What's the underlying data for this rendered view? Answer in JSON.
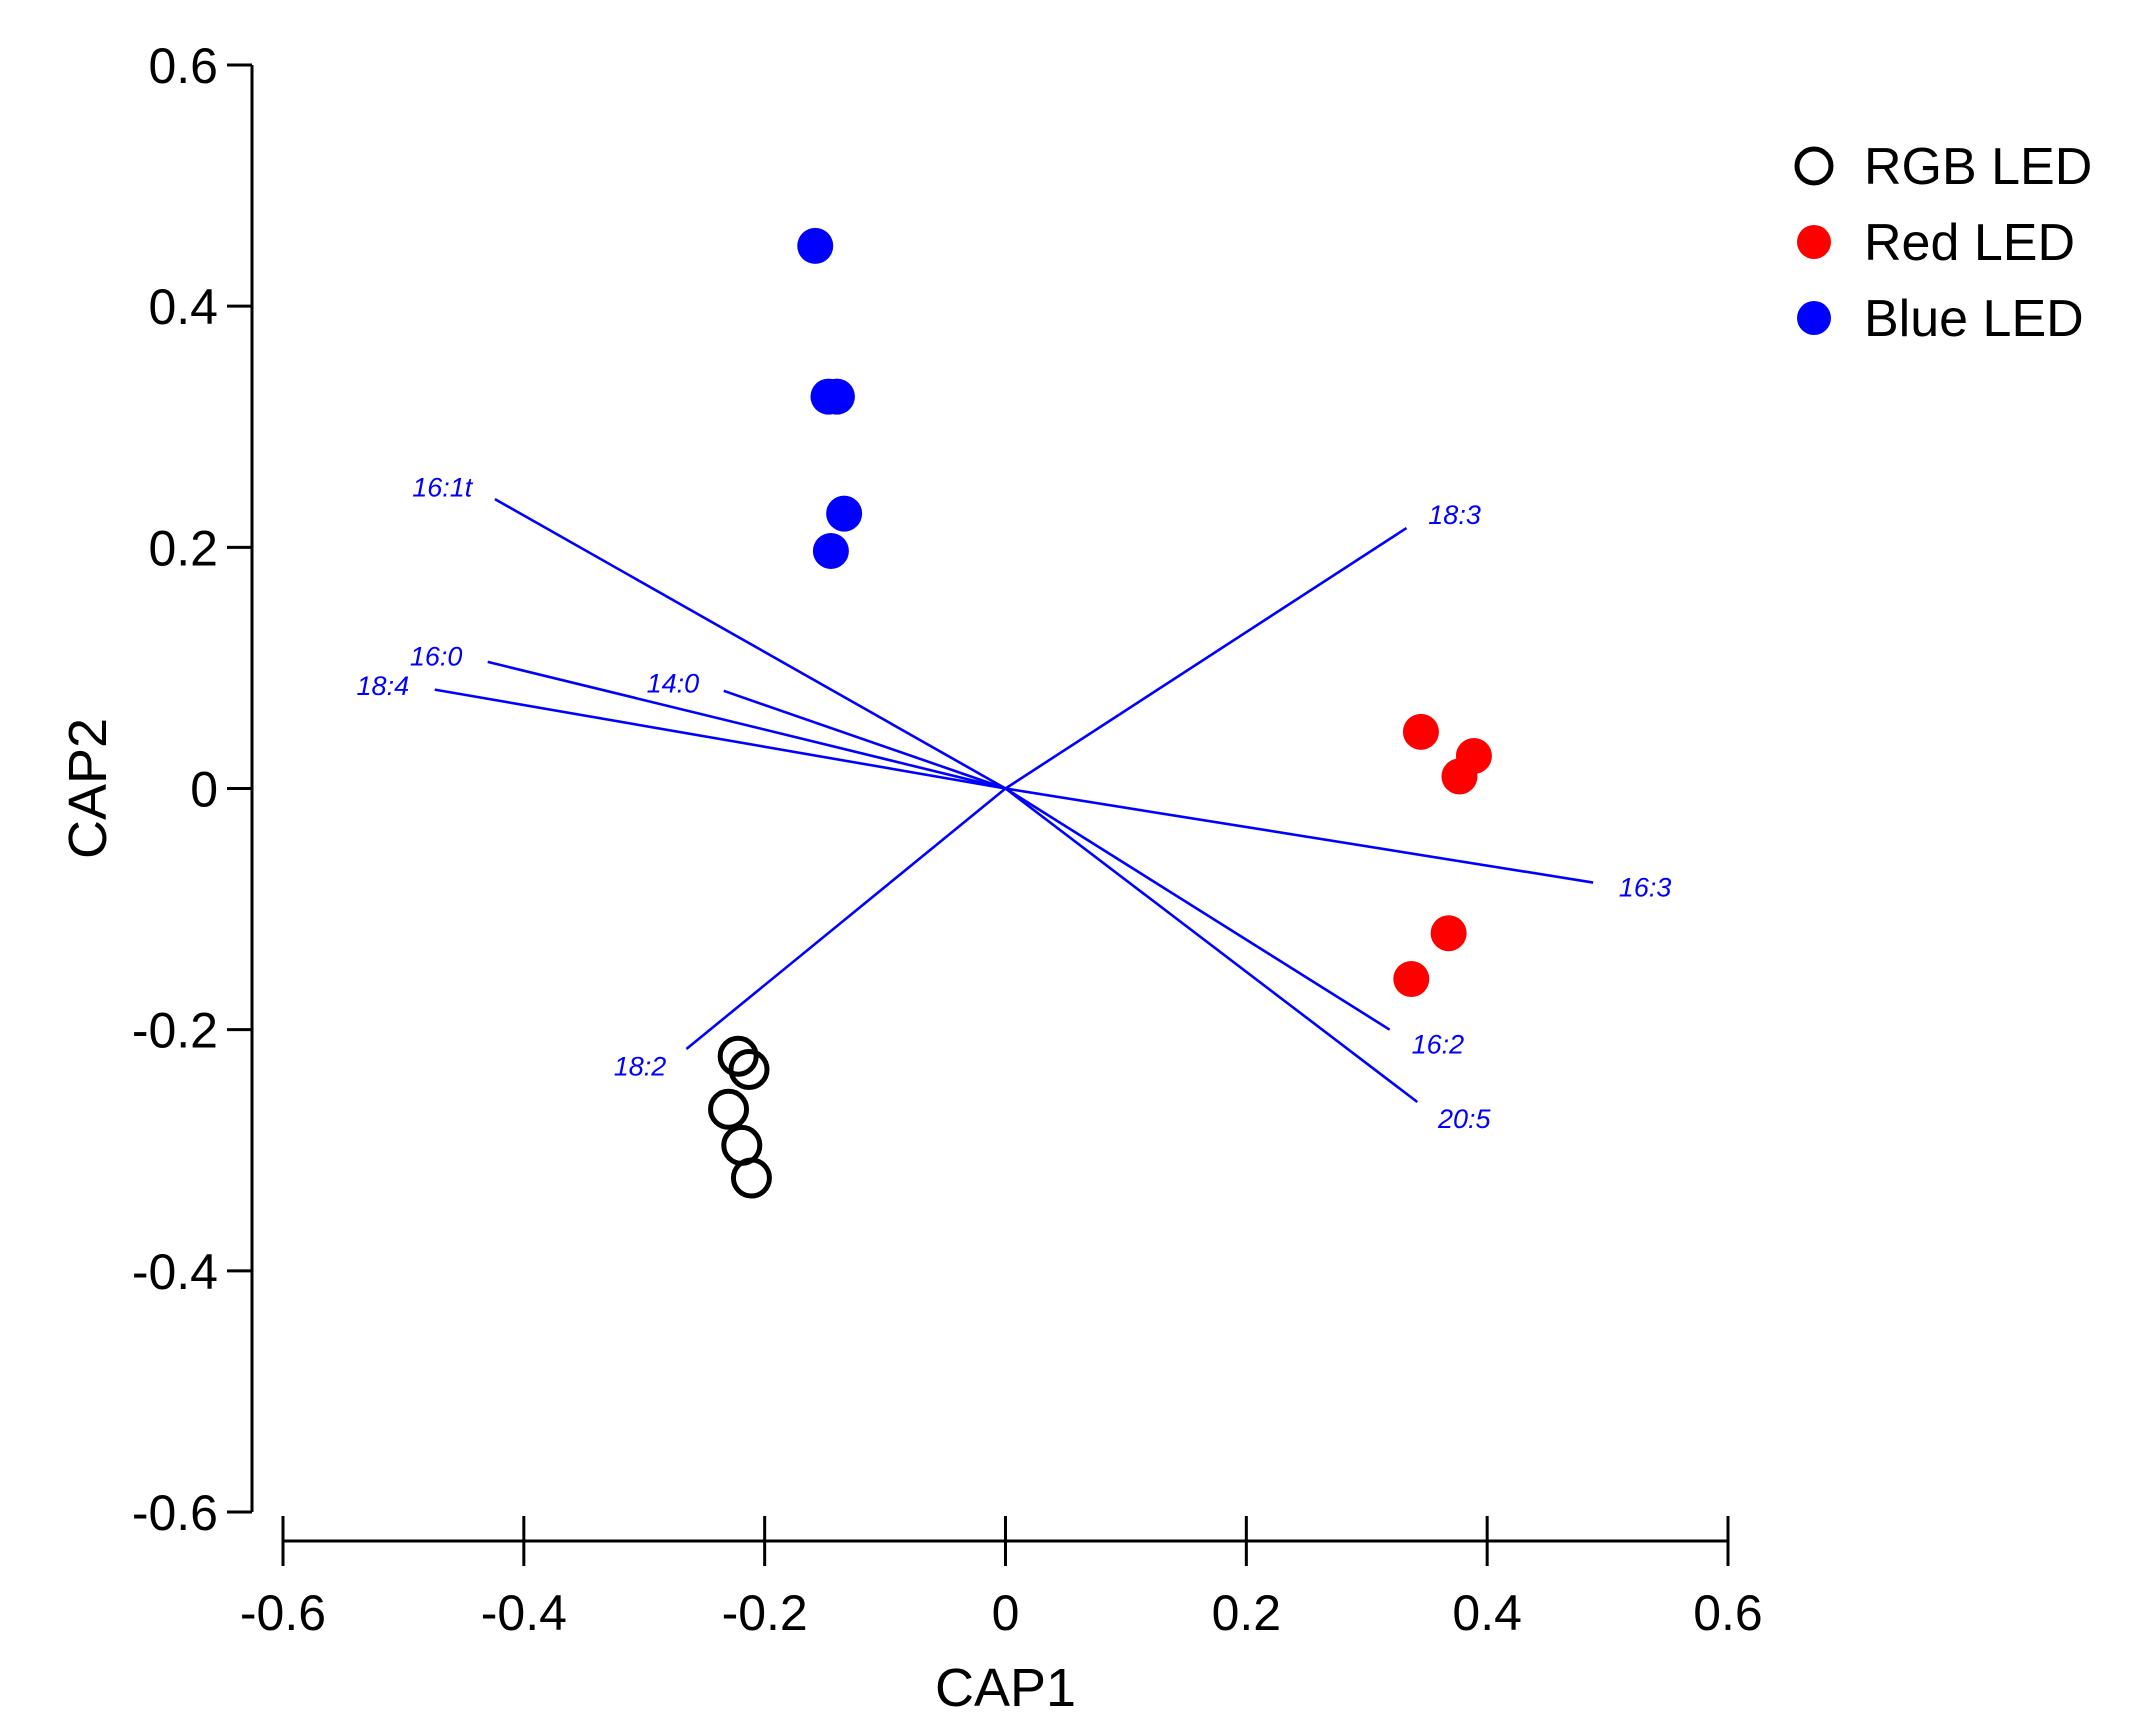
{
  "chart_data": {
    "type": "scatter",
    "title": "",
    "xlabel": "CAP1",
    "ylabel": "CAP2",
    "xlim": [
      -0.6,
      0.6
    ],
    "ylim": [
      -0.6,
      0.6
    ],
    "xticks": [
      -0.6,
      -0.4,
      -0.2,
      0,
      0.2,
      0.4,
      0.6
    ],
    "yticks": [
      -0.6,
      -0.4,
      -0.2,
      0,
      0.2,
      0.4,
      0.6
    ],
    "xtick_labels": [
      "-0.6",
      "-0.4",
      "-0.2",
      "0",
      "0.2",
      "0.4",
      "0.6"
    ],
    "ytick_labels": [
      "-0.6",
      "-0.4",
      "-0.2",
      "0",
      "0.2",
      "0.4",
      "0.6"
    ],
    "legend_position": "top-right",
    "series": [
      {
        "name": "RGB LED",
        "marker": "open-circle",
        "color": "#000000",
        "points": [
          {
            "x": -0.222,
            "y": -0.222
          },
          {
            "x": -0.213,
            "y": -0.233
          },
          {
            "x": -0.23,
            "y": -0.266
          },
          {
            "x": -0.219,
            "y": -0.296
          },
          {
            "x": -0.211,
            "y": -0.323
          }
        ]
      },
      {
        "name": "Red LED",
        "marker": "filled-circle",
        "color": "#ff0000",
        "points": [
          {
            "x": 0.345,
            "y": 0.047
          },
          {
            "x": 0.389,
            "y": 0.027
          },
          {
            "x": 0.377,
            "y": 0.01
          },
          {
            "x": 0.368,
            "y": -0.12
          },
          {
            "x": 0.337,
            "y": -0.158
          }
        ]
      },
      {
        "name": "Blue LED",
        "marker": "filled-circle",
        "color": "#0000ff",
        "points": [
          {
            "x": -0.158,
            "y": 0.45
          },
          {
            "x": -0.147,
            "y": 0.325
          },
          {
            "x": -0.14,
            "y": 0.325
          },
          {
            "x": -0.134,
            "y": 0.228
          },
          {
            "x": -0.145,
            "y": 0.197
          }
        ]
      }
    ],
    "vectors": {
      "color": "#0000ff",
      "items": [
        {
          "label": "16:1t",
          "x": -0.424,
          "y": 0.24
        },
        {
          "label": "18:3",
          "x": 0.333,
          "y": 0.216
        },
        {
          "label": "16:0",
          "x": -0.43,
          "y": 0.105
        },
        {
          "label": "14:0",
          "x": -0.234,
          "y": 0.081
        },
        {
          "label": "18:4",
          "x": -0.474,
          "y": 0.082
        },
        {
          "label": "16:3",
          "x": 0.488,
          "y": -0.078
        },
        {
          "label": "16:2",
          "x": 0.319,
          "y": -0.2
        },
        {
          "label": "20:5",
          "x": 0.342,
          "y": -0.26
        },
        {
          "label": "18:2",
          "x": -0.265,
          "y": -0.216
        }
      ]
    }
  }
}
